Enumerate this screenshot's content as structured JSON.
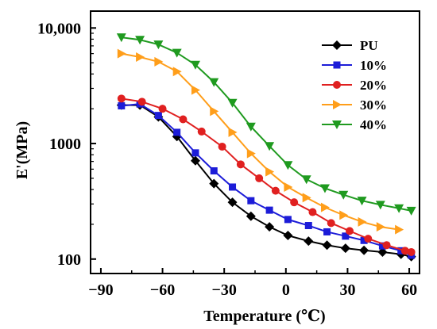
{
  "chart_data": {
    "type": "line",
    "xlabel": "Temperature (℃)",
    "ylabel": "E'(MPa)",
    "xlim": [
      -95,
      65
    ],
    "ylim": [
      75,
      14000
    ],
    "y_scale": "log",
    "grid": false,
    "legend_position": "top-right",
    "x_ticks": [
      -90,
      -60,
      -30,
      0,
      30,
      60
    ],
    "x_tick_labels": [
      "−90",
      "−60",
      "−30",
      "0",
      "30",
      "60"
    ],
    "y_ticks": [
      100,
      1000,
      10000
    ],
    "y_tick_labels": [
      "100",
      "1000",
      "10,000"
    ],
    "series": [
      {
        "name": "PU",
        "color": "#000000",
        "marker": "diamond",
        "x": [
          -80,
          -71,
          -62,
          -53,
          -44,
          -35,
          -26,
          -17,
          -8,
          1,
          11,
          20,
          29,
          38,
          47,
          56,
          61
        ],
        "y": [
          2150,
          2150,
          1700,
          1150,
          710,
          450,
          310,
          235,
          190,
          160,
          143,
          132,
          124,
          119,
          115,
          110,
          105
        ]
      },
      {
        "name": "10%",
        "color": "#1c1cd8",
        "marker": "square",
        "x": [
          -80,
          -71,
          -62,
          -53,
          -44,
          -35,
          -26,
          -17,
          -8,
          1,
          11,
          20,
          29,
          38,
          47,
          56,
          61
        ],
        "y": [
          2120,
          2200,
          1750,
          1250,
          830,
          580,
          420,
          320,
          265,
          220,
          195,
          172,
          158,
          145,
          130,
          118,
          108
        ]
      },
      {
        "name": "20%",
        "color": "#e02020",
        "marker": "circle",
        "x": [
          -80,
          -70,
          -60,
          -50,
          -41,
          -31,
          -22,
          -13,
          -5,
          4,
          13,
          22,
          31,
          40,
          49,
          58,
          61
        ],
        "y": [
          2450,
          2300,
          2000,
          1620,
          1270,
          940,
          660,
          500,
          390,
          310,
          255,
          205,
          175,
          150,
          132,
          118,
          115
        ]
      },
      {
        "name": "30%",
        "color": "#ff9e1a",
        "marker": "triangle-right",
        "x": [
          -80,
          -71,
          -62,
          -53,
          -44,
          -35,
          -26,
          -17,
          -8,
          1,
          10,
          19,
          28,
          37,
          46,
          55
        ],
        "y": [
          6000,
          5600,
          5100,
          4200,
          2900,
          1900,
          1250,
          820,
          570,
          420,
          340,
          280,
          240,
          210,
          190,
          180
        ]
      },
      {
        "name": "40%",
        "color": "#1f9a1f",
        "marker": "triangle-down",
        "x": [
          -80,
          -71,
          -62,
          -53,
          -44,
          -35,
          -26,
          -17,
          -8,
          1,
          10,
          19,
          28,
          37,
          46,
          55,
          61
        ],
        "y": [
          8300,
          7900,
          7200,
          6100,
          4800,
          3400,
          2250,
          1400,
          950,
          650,
          490,
          410,
          360,
          320,
          295,
          275,
          262
        ]
      }
    ]
  }
}
